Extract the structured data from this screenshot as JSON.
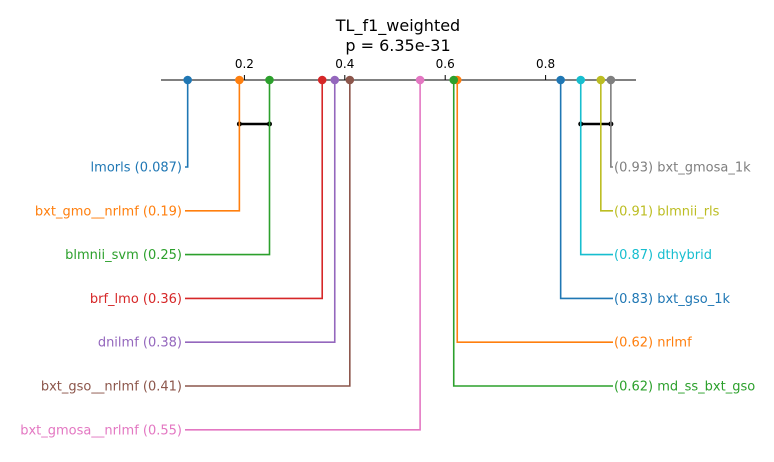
{
  "chart_data": {
    "type": "critical-difference",
    "title": "TL_f1_weighted",
    "subtitle": "p = 6.35e-31",
    "xlim": [
      0.0,
      1.0
    ],
    "ticks": [
      {
        "value": 0.2,
        "label": "0.2"
      },
      {
        "value": 0.4,
        "label": "0.4"
      },
      {
        "value": 0.6,
        "label": "0.6"
      },
      {
        "value": 0.8,
        "label": "0.8"
      }
    ],
    "left_methods": [
      {
        "name": "lmorls",
        "score": 0.087,
        "label": "lmorls (0.087)",
        "color": "#1f77b4"
      },
      {
        "name": "bxt_gmo__nrlmf",
        "score": 0.19,
        "label": "bxt_gmo__nrlmf (0.19)",
        "color": "#ff7f0e"
      },
      {
        "name": "blmnii_svm",
        "score": 0.25,
        "label": "blmnii_svm (0.25)",
        "color": "#2ca02c"
      },
      {
        "name": "brf_lmo",
        "score": 0.355,
        "label": "brf_lmo (0.36)",
        "color": "#d62728"
      },
      {
        "name": "dnilmf",
        "score": 0.38,
        "label": "dnilmf (0.38)",
        "color": "#9467bd"
      },
      {
        "name": "bxt_gso__nrlmf",
        "score": 0.41,
        "label": "bxt_gso__nrlmf (0.41)",
        "color": "#8c564b"
      },
      {
        "name": "bxt_gmosa__nrlmf",
        "score": 0.55,
        "label": "bxt_gmosa__nrlmf (0.55)",
        "color": "#e377c2"
      }
    ],
    "right_methods": [
      {
        "name": "bxt_gmosa_1k",
        "score": 0.93,
        "label": "(0.93) bxt_gmosa_1k",
        "color": "#7f7f7f"
      },
      {
        "name": "blmnii_rls",
        "score": 0.91,
        "label": "(0.91) blmnii_rls",
        "color": "#bcbd22"
      },
      {
        "name": "dthybrid",
        "score": 0.87,
        "label": "(0.87) dthybrid",
        "color": "#17becf"
      },
      {
        "name": "bxt_gso_1k",
        "score": 0.83,
        "label": "(0.83) bxt_gso_1k",
        "color": "#1f77b4"
      },
      {
        "name": "nrlmf",
        "score": 0.624,
        "label": "(0.62) nrlmf",
        "color": "#ff7f0e"
      },
      {
        "name": "md_ss_bxt_gso",
        "score": 0.617,
        "label": "(0.62) md_ss_bxt_gso",
        "color": "#2ca02c"
      }
    ],
    "cliques": [
      {
        "from": 0.19,
        "to": 0.25
      },
      {
        "from": 0.87,
        "to": 0.93
      }
    ]
  }
}
